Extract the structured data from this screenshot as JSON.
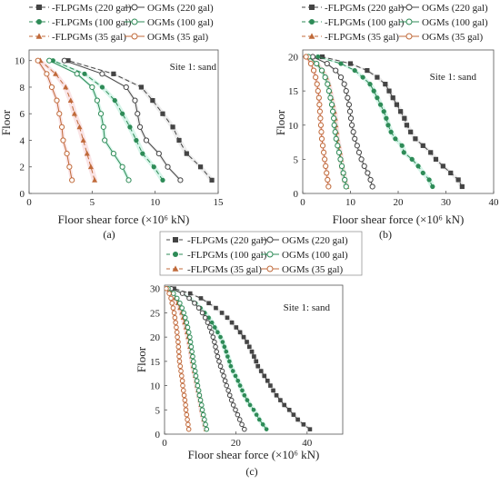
{
  "figure": {
    "series_styles": [
      {
        "color": "#444444",
        "marker": "square",
        "dash": true
      },
      {
        "color": "#2e8b57",
        "marker": "circle",
        "dash": true
      },
      {
        "color": "#c06a3a",
        "marker": "triangle",
        "dash": true
      },
      {
        "color": "#444444",
        "marker": "open-circle",
        "dash": false
      },
      {
        "color": "#2e8b57",
        "marker": "open-circle",
        "dash": false
      },
      {
        "color": "#c06a3a",
        "marker": "open-circle",
        "dash": false
      }
    ],
    "band_colors": [
      "#e0e0e0",
      "#b8ecd8",
      "#f6cdd2"
    ]
  },
  "chart_data": [
    {
      "type": "line",
      "panel_label": "(a)",
      "annotation": "Site 1: sand",
      "xlabel": "Floor shear force (×10⁶ kN)",
      "ylabel": "Floor",
      "xlim": [
        0,
        15
      ],
      "ylim": [
        0,
        10.8
      ],
      "xticks": [
        0,
        5,
        10,
        15
      ],
      "yticks": [
        0,
        2,
        4,
        6,
        8,
        10
      ],
      "legend": [
        "-FLPGMs (220 gal)",
        "OGMs (220 gal)",
        "-FLPGMs (100 gal)",
        "OGMs (100 gal)",
        "-FLPGMs (35 gal)",
        "OGMs (35 gal)"
      ],
      "legend_position": "top-left",
      "floors": [
        1,
        2,
        3,
        4,
        5,
        6,
        7,
        8,
        9,
        10
      ],
      "series": [
        {
          "name": "-FLPGMs (220 gal)",
          "x": [
            14.5,
            13.6,
            12.5,
            11.9,
            11.4,
            10.6,
            9.8,
            8.9,
            6.7,
            3.1
          ]
        },
        {
          "name": "-FLPGMs (100 gal)",
          "x": [
            10.6,
            9.9,
            9.0,
            8.5,
            8.0,
            7.4,
            6.8,
            5.8,
            4.4,
            1.9
          ]
        },
        {
          "name": "-FLPGMs (35 gal)",
          "x": [
            5.2,
            4.9,
            4.6,
            4.3,
            4.0,
            3.6,
            3.3,
            2.9,
            2.1,
            0.9
          ]
        },
        {
          "name": "OGMs (220 gal)",
          "x": [
            12.0,
            11.0,
            10.3,
            9.3,
            8.8,
            8.6,
            8.4,
            7.7,
            5.8,
            2.8
          ]
        },
        {
          "name": "OGMs (100 gal)",
          "x": [
            7.9,
            7.4,
            6.7,
            6.0,
            5.9,
            5.7,
            5.4,
            5.0,
            3.8,
            1.6
          ]
        },
        {
          "name": "OGMs (35 gal)",
          "x": [
            3.4,
            3.2,
            3.0,
            2.7,
            2.6,
            2.4,
            2.2,
            1.8,
            1.4,
            0.7
          ]
        }
      ]
    },
    {
      "type": "line",
      "panel_label": "(b)",
      "annotation": "Site 1: sand",
      "xlabel": "Floor shear force (×10⁶ kN)",
      "ylabel": "Floor",
      "xlim": [
        0,
        40
      ],
      "ylim": [
        0,
        21
      ],
      "xticks": [
        0,
        10,
        20,
        30,
        40
      ],
      "yticks": [
        0,
        5,
        10,
        15,
        20
      ],
      "legend": [
        "-FLPGMs (220 gal)",
        "OGMs (220 gal)",
        "-FLPGMs (100 gal)",
        "OGMs (100 gal)",
        "-FLPGMs (35 gal)",
        "OGMs (35 gal)"
      ],
      "legend_position": "top",
      "floors": [
        1,
        2,
        3,
        4,
        5,
        6,
        7,
        8,
        9,
        10,
        11,
        12,
        13,
        14,
        15,
        16,
        17,
        18,
        19,
        20
      ],
      "series": [
        {
          "name": "-FLPGMs (220 gal)",
          "x": [
            33.4,
            32.6,
            31.0,
            29.4,
            27.9,
            26.8,
            25.2,
            23.6,
            22.6,
            21.8,
            21.3,
            20.5,
            19.7,
            18.9,
            18.1,
            17.3,
            15.6,
            13.5,
            10.0,
            4.1
          ]
        },
        {
          "name": "-FLPGMs (100 gal)",
          "x": [
            27.2,
            26.5,
            25.2,
            24.2,
            22.9,
            21.2,
            20.8,
            19.4,
            18.5,
            17.9,
            17.5,
            17.0,
            16.3,
            15.6,
            14.9,
            14.1,
            12.6,
            10.9,
            8.0,
            3.2
          ]
        },
        {
          "name": "-FLPGMs (35 gal)",
          "x": [
            9.2,
            8.8,
            8.5,
            8.2,
            8.0,
            7.8,
            7.5,
            7.2,
            7.1,
            6.9,
            6.8,
            6.6,
            6.3,
            6.0,
            5.7,
            5.4,
            4.9,
            4.1,
            3.0,
            1.2
          ]
        },
        {
          "name": "OGMs (220 gal)",
          "x": [
            14.6,
            14.2,
            13.6,
            12.9,
            12.3,
            11.8,
            11.4,
            10.9,
            10.6,
            10.3,
            10.1,
            9.9,
            9.7,
            9.4,
            9.1,
            8.7,
            8.0,
            6.9,
            5.1,
            2.1
          ]
        },
        {
          "name": "OGMs (100 gal)",
          "x": [
            9.1,
            8.8,
            8.5,
            8.2,
            7.9,
            7.6,
            7.3,
            7.0,
            6.8,
            6.6,
            6.5,
            6.3,
            6.1,
            5.8,
            5.5,
            5.2,
            4.7,
            4.0,
            2.9,
            1.2
          ]
        },
        {
          "name": "OGMs (35 gal)",
          "x": [
            5.4,
            5.2,
            5.0,
            4.8,
            4.6,
            4.4,
            4.2,
            4.0,
            3.9,
            3.8,
            3.7,
            3.6,
            3.5,
            3.4,
            3.2,
            3.0,
            2.7,
            2.3,
            1.7,
            0.7
          ]
        }
      ]
    },
    {
      "type": "line",
      "panel_label": "(c)",
      "annotation": "Site 1: sand",
      "xlabel": "Floor shear force (×10⁶ kN)",
      "ylabel": "Floor",
      "xlim": [
        0,
        50
      ],
      "ylim": [
        0,
        30.7
      ],
      "xticks": [
        0,
        20,
        40
      ],
      "yticks": [
        0,
        5,
        10,
        15,
        20,
        25,
        30
      ],
      "legend": [
        "-FLPGMs (220 gal)",
        "OGMs (220 gal)",
        "-FLPGMs (100 gal)",
        "OGMs (100 gal)",
        "-FLPGMs (35 gal)",
        "OGMs (35 gal)"
      ],
      "legend_position": "above",
      "floors": [
        1,
        2,
        3,
        4,
        5,
        6,
        7,
        8,
        9,
        10,
        11,
        12,
        13,
        14,
        15,
        16,
        17,
        18,
        19,
        20,
        21,
        22,
        23,
        24,
        25,
        26,
        27,
        28,
        29,
        30
      ],
      "series": [
        {
          "name": "-FLPGMs (220 gal)",
          "x": [
            40.8,
            39.0,
            37.4,
            36.2,
            35.0,
            33.6,
            32.5,
            31.4,
            30.5,
            29.7,
            28.9,
            28.0,
            27.1,
            26.2,
            25.7,
            25.1,
            24.5,
            23.8,
            23.1,
            22.2,
            21.2,
            20.1,
            18.9,
            17.6,
            16.1,
            14.4,
            12.4,
            10.2,
            7.2,
            2.7
          ]
        },
        {
          "name": "-FLPGMs (100 gal)",
          "x": [
            28.6,
            27.6,
            26.6,
            25.8,
            25.0,
            24.0,
            23.2,
            22.4,
            21.8,
            21.2,
            20.6,
            19.9,
            19.2,
            18.6,
            18.2,
            17.7,
            17.3,
            16.8,
            16.3,
            15.7,
            14.9,
            14.1,
            13.3,
            12.4,
            11.3,
            10.1,
            8.7,
            7.1,
            5.1,
            1.9
          ]
        },
        {
          "name": "-FLPGMs (35 gal)",
          "x": [
            11.6,
            11.3,
            11.0,
            10.7,
            10.4,
            10.2,
            10.0,
            9.7,
            9.4,
            9.1,
            8.9,
            8.6,
            8.3,
            8.0,
            7.8,
            7.6,
            7.4,
            7.1,
            6.9,
            6.6,
            6.3,
            6.0,
            5.6,
            5.2,
            4.8,
            4.3,
            3.7,
            3.0,
            2.2,
            0.8
          ]
        },
        {
          "name": "OGMs (220 gal)",
          "x": [
            22.4,
            21.7,
            21.1,
            20.5,
            19.9,
            19.3,
            18.8,
            18.3,
            17.9,
            17.4,
            17.0,
            16.6,
            16.2,
            15.7,
            15.3,
            14.9,
            14.6,
            14.3,
            14.0,
            13.6,
            13.2,
            12.7,
            12.1,
            11.4,
            10.6,
            9.6,
            8.4,
            6.9,
            5.0,
            1.9
          ]
        },
        {
          "name": "OGMs (100 gal)",
          "x": [
            11.8,
            11.5,
            11.2,
            10.9,
            10.6,
            10.4,
            10.1,
            9.8,
            9.6,
            9.3,
            9.1,
            8.8,
            8.6,
            8.3,
            8.1,
            7.9,
            7.7,
            7.5,
            7.3,
            7.1,
            6.8,
            6.5,
            6.2,
            5.8,
            5.4,
            4.9,
            4.3,
            3.5,
            2.5,
            1.0
          ]
        },
        {
          "name": "OGMs (35 gal)",
          "x": [
            6.8,
            6.6,
            6.4,
            6.2,
            6.0,
            5.9,
            5.7,
            5.5,
            5.3,
            5.1,
            5.0,
            4.8,
            4.6,
            4.4,
            4.2,
            4.1,
            4.0,
            3.9,
            3.8,
            3.6,
            3.5,
            3.3,
            3.1,
            2.9,
            2.7,
            2.4,
            2.1,
            1.8,
            1.3,
            0.5
          ]
        }
      ]
    }
  ]
}
